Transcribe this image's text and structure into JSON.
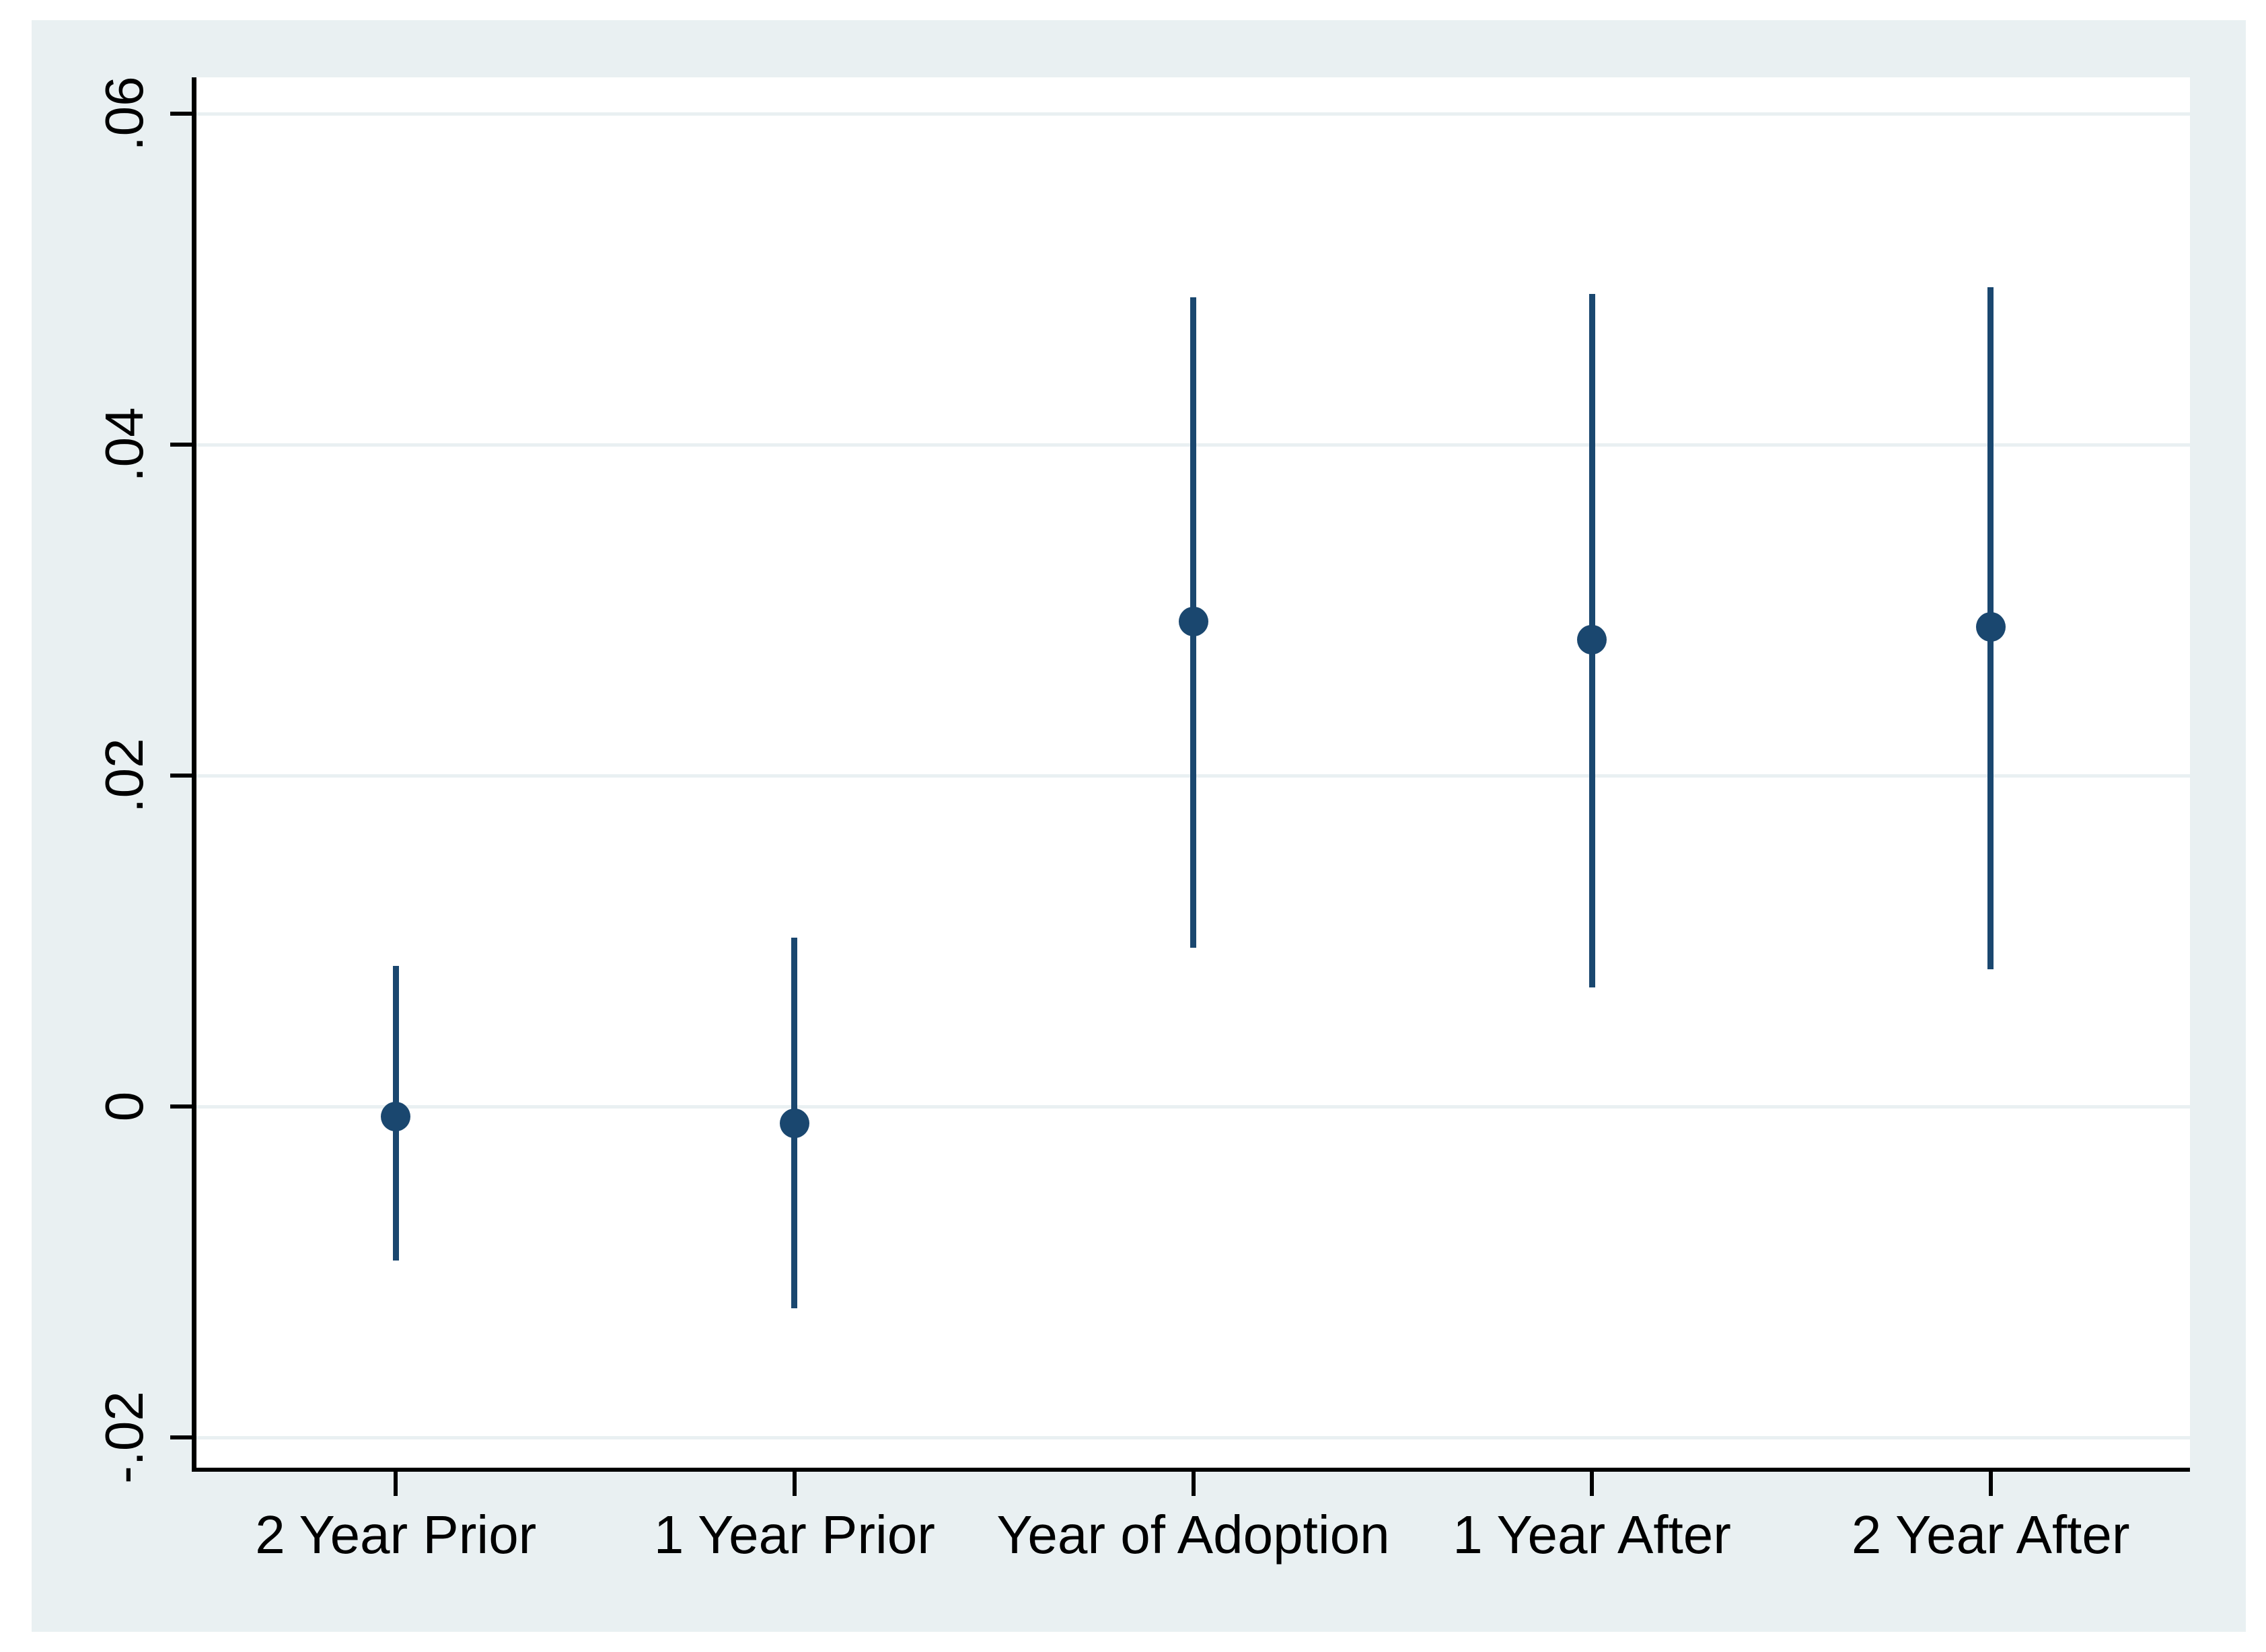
{
  "chart_data": {
    "type": "scatter",
    "subtype": "coefficient_plot_with_confidence_intervals",
    "title": "",
    "xlabel": "",
    "ylabel": "",
    "categories": [
      "2 Year Prior",
      "1 Year Prior",
      "Year of Adoption",
      "1 Year After",
      "2 Year After"
    ],
    "series": [
      {
        "name": "point-estimate",
        "estimates": [
          -0.0006,
          -0.001,
          0.0293,
          0.0282,
          0.029
        ],
        "ci_low": [
          -0.0093,
          -0.0122,
          0.0096,
          0.0072,
          0.0083
        ],
        "ci_high": [
          0.0085,
          0.0102,
          0.0489,
          0.0491,
          0.0495
        ]
      }
    ],
    "y_ticks": [
      {
        "label": ".06",
        "value": 0.06
      },
      {
        "label": ".04",
        "value": 0.04
      },
      {
        "label": ".02",
        "value": 0.02
      },
      {
        "label": "0",
        "value": 0
      },
      {
        "label": "-.02",
        "value": -0.02
      }
    ],
    "ylim": [
      -0.0218,
      0.0622
    ],
    "grid": true,
    "legend": false,
    "colors": {
      "marker": "#1a476f",
      "ci_line": "#1a476f",
      "axis": "#000000",
      "text": "#000000",
      "panel_bg": "#e9f0f2",
      "plot_bg": "#ffffff",
      "gridline": "#e9f0f2",
      "page_bg": "#ffffff"
    }
  }
}
